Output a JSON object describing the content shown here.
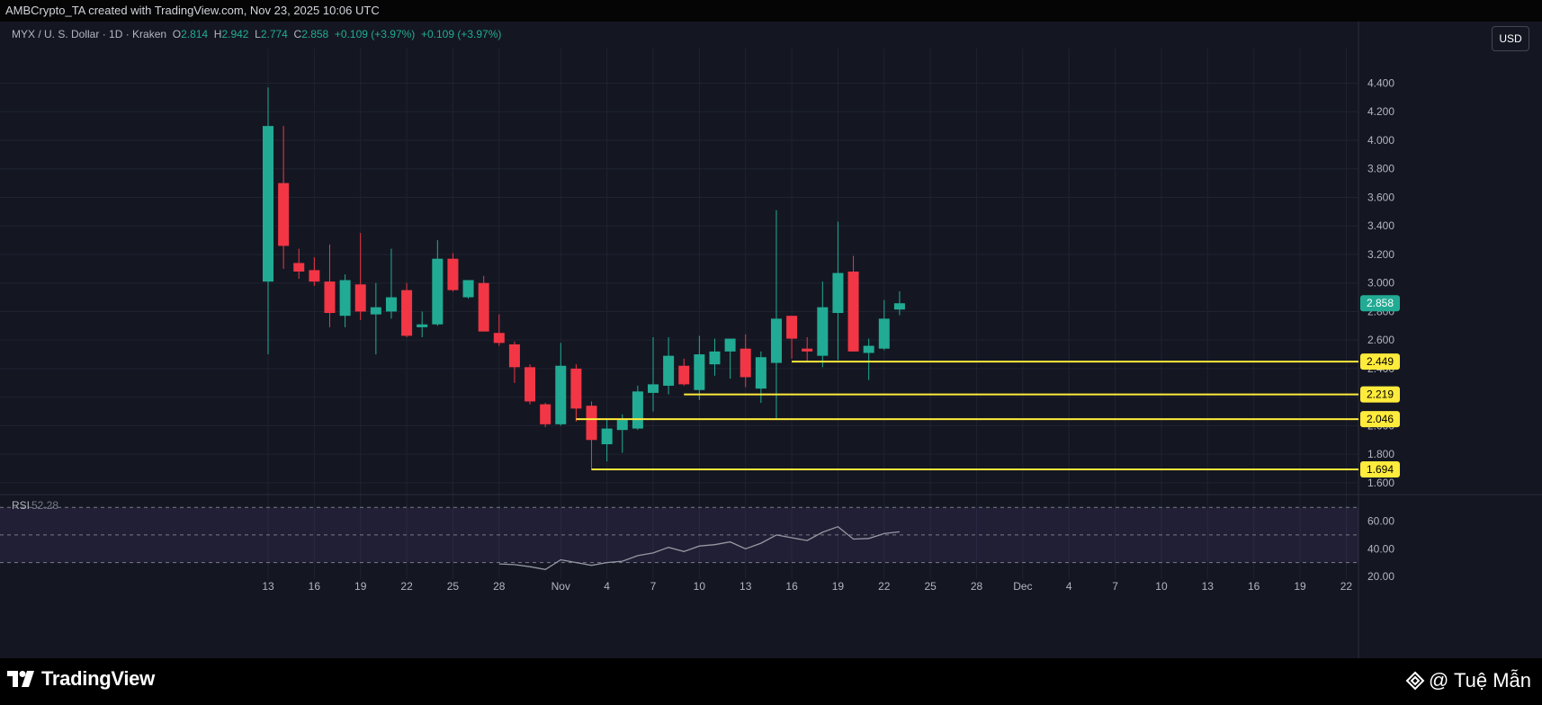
{
  "header": {
    "attribution": "AMBCrypto_TA created with TradingView.com, Nov 23, 2025 10:06 UTC"
  },
  "legend": {
    "symbol": "MYX / U. S. Dollar · 1D · Kraken",
    "o_label": "O",
    "o_value": "2.814",
    "h_label": "H",
    "h_value": "2.942",
    "l_label": "L",
    "l_value": "2.774",
    "c_label": "C",
    "c_value": "2.858",
    "change1": "+0.109 (+3.97%)",
    "change2": "+0.109 (+3.97%)"
  },
  "currency_button": "USD",
  "rsi": {
    "label": "RSI",
    "value": "52.28"
  },
  "footer": {
    "logo_text": "TradingView",
    "watermark": "@ Tuệ Mẫn"
  },
  "colors": {
    "up": "#22ab94",
    "down": "#f23645",
    "level": "#ffeb3b",
    "background": "#141722"
  },
  "chart_data": {
    "type": "candlestick",
    "price_axis": {
      "ticks": [
        1.6,
        1.8,
        2.0,
        2.2,
        2.4,
        2.6,
        2.8,
        3.0,
        3.2,
        3.4,
        3.6,
        3.8,
        4.0,
        4.2,
        4.4
      ],
      "tick_labels": [
        "1.600",
        "1.800",
        "2.000",
        "2.200",
        "2.400",
        "2.600",
        "2.800",
        "3.000",
        "3.200",
        "3.400",
        "3.600",
        "3.800",
        "4.000",
        "4.200",
        "4.400"
      ],
      "range": [
        1.53,
        4.63
      ]
    },
    "time_axis": {
      "start_date": "2025-10-13",
      "labels": [
        {
          "day": 0,
          "text": "13"
        },
        {
          "day": 3,
          "text": "16"
        },
        {
          "day": 6,
          "text": "19"
        },
        {
          "day": 9,
          "text": "22"
        },
        {
          "day": 12,
          "text": "25"
        },
        {
          "day": 15,
          "text": "28"
        },
        {
          "day": 19,
          "text": "Nov"
        },
        {
          "day": 22,
          "text": "4"
        },
        {
          "day": 25,
          "text": "7"
        },
        {
          "day": 28,
          "text": "10"
        },
        {
          "day": 31,
          "text": "13"
        },
        {
          "day": 34,
          "text": "16"
        },
        {
          "day": 37,
          "text": "19"
        },
        {
          "day": 40,
          "text": "22"
        },
        {
          "day": 43,
          "text": "25"
        },
        {
          "day": 46,
          "text": "28"
        },
        {
          "day": 49,
          "text": "Dec"
        },
        {
          "day": 52,
          "text": "4"
        },
        {
          "day": 55,
          "text": "7"
        },
        {
          "day": 58,
          "text": "10"
        },
        {
          "day": 61,
          "text": "13"
        },
        {
          "day": 64,
          "text": "16"
        },
        {
          "day": 67,
          "text": "19"
        },
        {
          "day": 70,
          "text": "22"
        }
      ]
    },
    "candles": [
      {
        "date": "2025-10-13",
        "o": 3.01,
        "h": 4.37,
        "l": 2.5,
        "c": 4.1
      },
      {
        "date": "2025-10-14",
        "o": 3.7,
        "h": 4.1,
        "l": 3.1,
        "c": 3.26
      },
      {
        "date": "2025-10-15",
        "o": 3.14,
        "h": 3.24,
        "l": 3.03,
        "c": 3.08
      },
      {
        "date": "2025-10-16",
        "o": 3.09,
        "h": 3.18,
        "l": 2.98,
        "c": 3.01
      },
      {
        "date": "2025-10-17",
        "o": 3.01,
        "h": 3.27,
        "l": 2.69,
        "c": 2.79
      },
      {
        "date": "2025-10-18",
        "o": 2.77,
        "h": 3.06,
        "l": 2.69,
        "c": 3.02
      },
      {
        "date": "2025-10-19",
        "o": 2.99,
        "h": 3.35,
        "l": 2.74,
        "c": 2.8
      },
      {
        "date": "2025-10-20",
        "o": 2.78,
        "h": 3.0,
        "l": 2.5,
        "c": 2.83
      },
      {
        "date": "2025-10-21",
        "o": 2.8,
        "h": 3.24,
        "l": 2.75,
        "c": 2.9
      },
      {
        "date": "2025-10-22",
        "o": 2.95,
        "h": 3.0,
        "l": 2.62,
        "c": 2.63
      },
      {
        "date": "2025-10-23",
        "o": 2.69,
        "h": 2.8,
        "l": 2.62,
        "c": 2.71
      },
      {
        "date": "2025-10-24",
        "o": 2.71,
        "h": 3.3,
        "l": 2.7,
        "c": 3.17
      },
      {
        "date": "2025-10-25",
        "o": 3.17,
        "h": 3.21,
        "l": 2.94,
        "c": 2.95
      },
      {
        "date": "2025-10-26",
        "o": 2.9,
        "h": 3.02,
        "l": 2.89,
        "c": 3.02
      },
      {
        "date": "2025-10-27",
        "o": 3.0,
        "h": 3.05,
        "l": 2.67,
        "c": 2.66
      },
      {
        "date": "2025-10-28",
        "o": 2.65,
        "h": 2.78,
        "l": 2.56,
        "c": 2.58
      },
      {
        "date": "2025-10-29",
        "o": 2.57,
        "h": 2.59,
        "l": 2.3,
        "c": 2.41
      },
      {
        "date": "2025-10-30",
        "o": 2.41,
        "h": 2.43,
        "l": 2.15,
        "c": 2.17
      },
      {
        "date": "2025-10-31",
        "o": 2.15,
        "h": 2.16,
        "l": 1.99,
        "c": 2.01
      },
      {
        "date": "2025-11-01",
        "o": 2.01,
        "h": 2.58,
        "l": 2.0,
        "c": 2.42
      },
      {
        "date": "2025-11-02",
        "o": 2.4,
        "h": 2.43,
        "l": 2.03,
        "c": 2.12
      },
      {
        "date": "2025-11-03",
        "o": 2.14,
        "h": 2.17,
        "l": 1.69,
        "c": 1.9
      },
      {
        "date": "2025-11-04",
        "o": 1.87,
        "h": 2.05,
        "l": 1.75,
        "c": 1.98
      },
      {
        "date": "2025-11-05",
        "o": 1.97,
        "h": 2.08,
        "l": 1.81,
        "c": 2.04
      },
      {
        "date": "2025-11-06",
        "o": 1.98,
        "h": 2.28,
        "l": 1.97,
        "c": 2.24
      },
      {
        "date": "2025-11-07",
        "o": 2.23,
        "h": 2.62,
        "l": 2.1,
        "c": 2.29
      },
      {
        "date": "2025-11-08",
        "o": 2.28,
        "h": 2.62,
        "l": 2.22,
        "c": 2.49
      },
      {
        "date": "2025-11-09",
        "o": 2.42,
        "h": 2.47,
        "l": 2.28,
        "c": 2.29
      },
      {
        "date": "2025-11-10",
        "o": 2.25,
        "h": 2.63,
        "l": 2.18,
        "c": 2.5
      },
      {
        "date": "2025-11-11",
        "o": 2.43,
        "h": 2.61,
        "l": 2.35,
        "c": 2.52
      },
      {
        "date": "2025-11-12",
        "o": 2.52,
        "h": 2.61,
        "l": 2.33,
        "c": 2.61
      },
      {
        "date": "2025-11-13",
        "o": 2.54,
        "h": 2.64,
        "l": 2.27,
        "c": 2.34
      },
      {
        "date": "2025-11-14",
        "o": 2.26,
        "h": 2.52,
        "l": 2.16,
        "c": 2.48
      },
      {
        "date": "2025-11-15",
        "o": 2.44,
        "h": 3.51,
        "l": 2.04,
        "c": 2.75
      },
      {
        "date": "2025-11-16",
        "o": 2.77,
        "h": 2.76,
        "l": 2.47,
        "c": 2.61
      },
      {
        "date": "2025-11-17",
        "o": 2.54,
        "h": 2.62,
        "l": 2.45,
        "c": 2.52
      },
      {
        "date": "2025-11-18",
        "o": 2.49,
        "h": 3.01,
        "l": 2.41,
        "c": 2.83
      },
      {
        "date": "2025-11-19",
        "o": 2.79,
        "h": 3.43,
        "l": 2.46,
        "c": 3.07
      },
      {
        "date": "2025-11-20",
        "o": 3.08,
        "h": 3.19,
        "l": 2.53,
        "c": 2.52
      },
      {
        "date": "2025-11-21",
        "o": 2.51,
        "h": 2.61,
        "l": 2.32,
        "c": 2.56
      },
      {
        "date": "2025-11-22",
        "o": 2.54,
        "h": 2.88,
        "l": 2.53,
        "c": 2.75
      },
      {
        "date": "2025-11-23",
        "o": 2.814,
        "h": 2.942,
        "l": 2.774,
        "c": 2.858
      }
    ],
    "current_price": {
      "value": 2.858,
      "label": "2.858"
    },
    "levels": [
      {
        "value": 2.449,
        "label": "2.449",
        "start_date": "2025-11-16"
      },
      {
        "value": 2.219,
        "label": "2.219",
        "start_date": "2025-11-09"
      },
      {
        "value": 2.046,
        "label": "2.046",
        "start_date": "2025-11-02"
      },
      {
        "value": 1.694,
        "label": "1.694",
        "start_date": "2025-11-03"
      }
    ],
    "rsi": {
      "ticks": [
        20,
        40,
        60
      ],
      "tick_labels": [
        "20.00",
        "40.00",
        "60.00"
      ],
      "range": [
        18,
        78
      ],
      "overbought": 70,
      "midline": 50,
      "oversold": 30,
      "values": [
        {
          "date": "2025-10-28",
          "v": 29
        },
        {
          "date": "2025-10-29",
          "v": 28.5
        },
        {
          "date": "2025-10-30",
          "v": 27
        },
        {
          "date": "2025-10-31",
          "v": 25
        },
        {
          "date": "2025-11-01",
          "v": 32
        },
        {
          "date": "2025-11-02",
          "v": 30
        },
        {
          "date": "2025-11-03",
          "v": 28
        },
        {
          "date": "2025-11-04",
          "v": 30
        },
        {
          "date": "2025-11-05",
          "v": 31
        },
        {
          "date": "2025-11-06",
          "v": 35
        },
        {
          "date": "2025-11-07",
          "v": 37
        },
        {
          "date": "2025-11-08",
          "v": 41
        },
        {
          "date": "2025-11-09",
          "v": 38
        },
        {
          "date": "2025-11-10",
          "v": 42
        },
        {
          "date": "2025-11-11",
          "v": 43
        },
        {
          "date": "2025-11-12",
          "v": 45
        },
        {
          "date": "2025-11-13",
          "v": 40
        },
        {
          "date": "2025-11-14",
          "v": 44
        },
        {
          "date": "2025-11-15",
          "v": 50
        },
        {
          "date": "2025-11-16",
          "v": 48
        },
        {
          "date": "2025-11-17",
          "v": 46
        },
        {
          "date": "2025-11-18",
          "v": 52
        },
        {
          "date": "2025-11-19",
          "v": 56
        },
        {
          "date": "2025-11-20",
          "v": 47
        },
        {
          "date": "2025-11-21",
          "v": 47.5
        },
        {
          "date": "2025-11-22",
          "v": 51
        },
        {
          "date": "2025-11-23",
          "v": 52.28
        }
      ]
    }
  }
}
